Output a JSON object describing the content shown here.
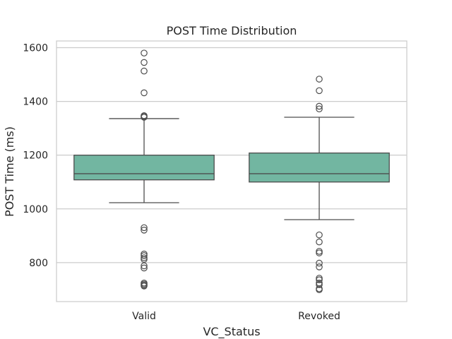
{
  "chart_data": {
    "type": "box",
    "title": "POST Time Distribution",
    "xlabel": "VC_Status",
    "ylabel": "POST Time (ms)",
    "categories": [
      "Valid",
      "Revoked"
    ],
    "ylim": [
      655,
      1625
    ],
    "yticks": [
      800,
      1000,
      1200,
      1400,
      1600
    ],
    "grid": true,
    "box_color": "#72b6a1",
    "line_color": "#4d4d4d",
    "boxes": [
      {
        "category": "Valid",
        "whisker_low": 1023,
        "q1": 1108,
        "median": 1131,
        "q3": 1200,
        "whisker_high": 1336,
        "outliers": [
          1580,
          1545,
          1513,
          1432,
          1347,
          1344,
          1341,
          930,
          921,
          832,
          826,
          818,
          812,
          788,
          780,
          724,
          720,
          716,
          713
        ]
      },
      {
        "category": "Revoked",
        "whisker_low": 960,
        "q1": 1100,
        "median": 1131,
        "q3": 1208,
        "whisker_high": 1341,
        "outliers": [
          1483,
          1440,
          1382,
          1372,
          903,
          877,
          842,
          836,
          798,
          784,
          742,
          736,
          724,
          718,
          703,
          699
        ]
      }
    ]
  }
}
